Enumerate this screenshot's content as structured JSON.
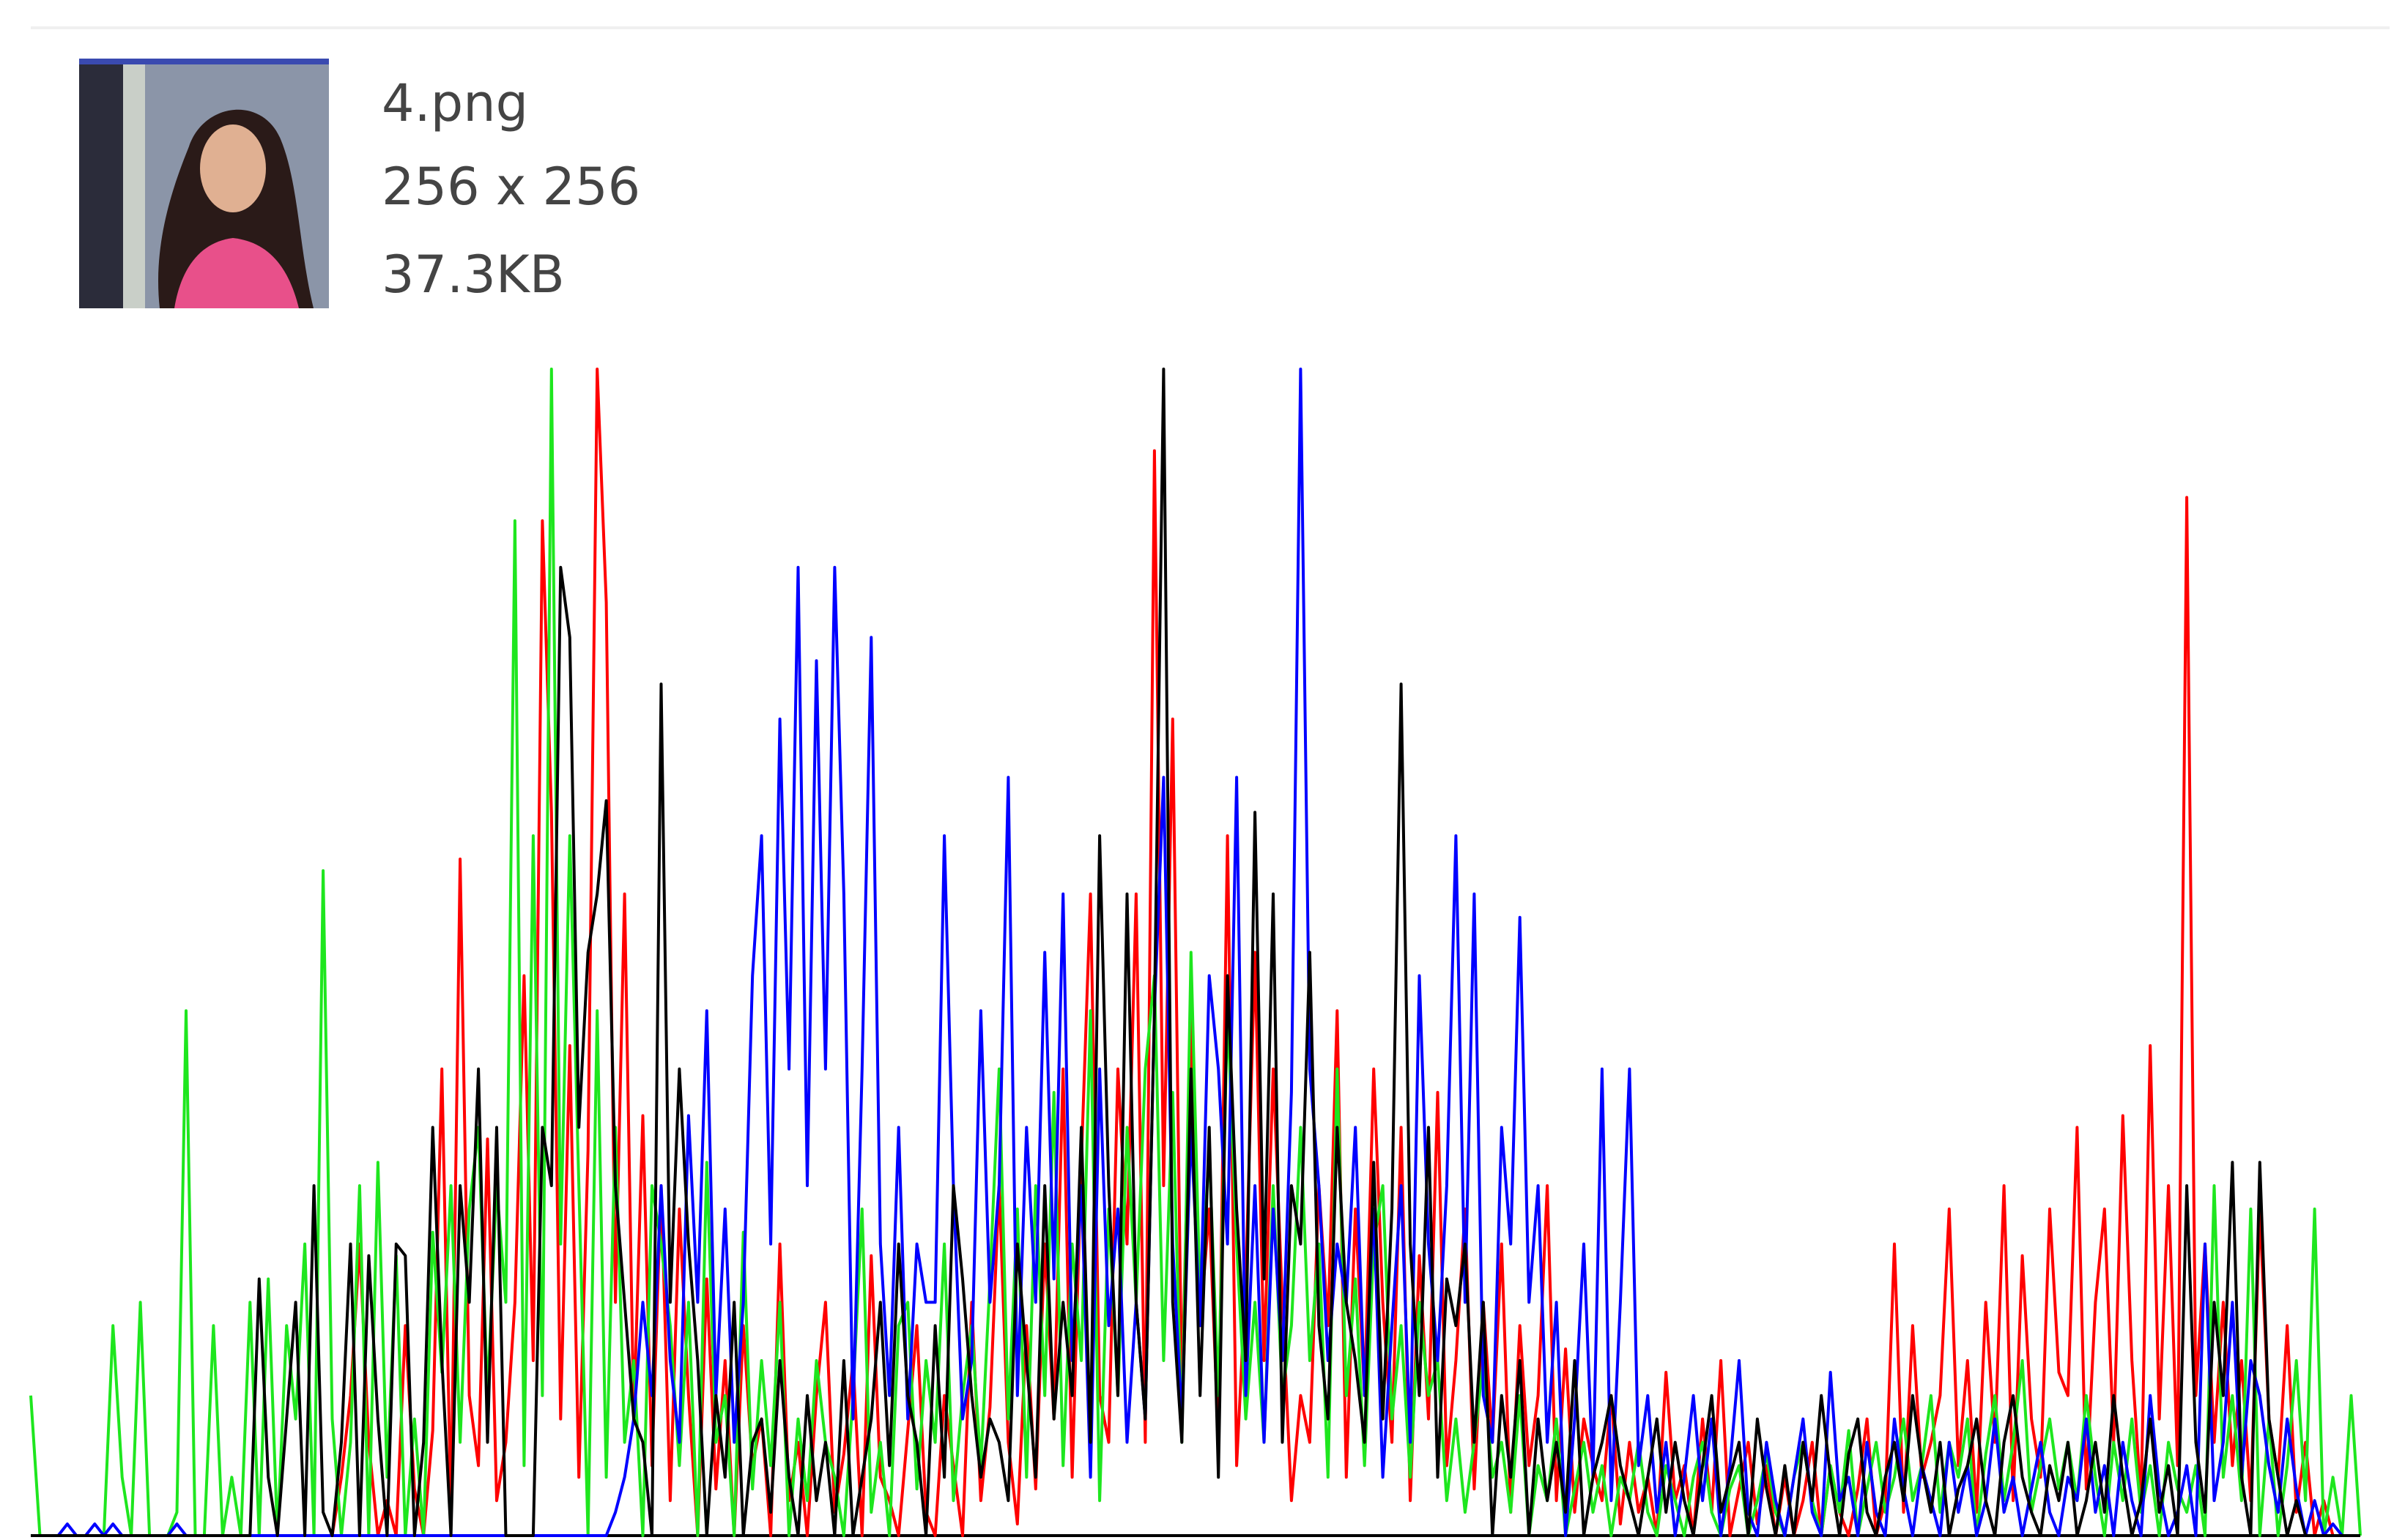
{
  "file": {
    "name": "4.png",
    "dimensions": "256 x 256",
    "size": "37.3KB"
  },
  "chart_data": {
    "type": "line",
    "ylim": [
      0,
      100
    ],
    "series": [
      {
        "color": "#ff0000",
        "values": [
          0,
          0,
          0,
          0,
          0,
          0,
          0,
          0,
          0,
          0,
          0,
          0,
          0,
          0,
          0,
          0,
          0,
          0,
          0,
          0,
          0,
          0,
          0,
          0,
          0,
          0,
          0,
          0,
          0,
          0,
          0,
          0,
          0,
          0,
          5,
          12,
          25,
          8,
          0,
          3,
          0,
          18,
          4,
          0,
          9,
          40,
          2,
          58,
          12,
          6,
          34,
          3,
          8,
          20,
          48,
          15,
          87,
          62,
          10,
          42,
          5,
          33,
          100,
          80,
          20,
          55,
          10,
          36,
          6,
          30,
          3,
          28,
          12,
          0,
          22,
          4,
          15,
          0,
          18,
          6,
          10,
          0,
          25,
          3,
          8,
          0,
          12,
          20,
          2,
          7,
          15,
          0,
          24,
          5,
          3,
          0,
          9,
          18,
          2,
          0,
          12,
          6,
          0,
          20,
          3,
          11,
          30,
          8,
          1,
          18,
          4,
          25,
          10,
          40,
          5,
          32,
          55,
          12,
          8,
          40,
          25,
          55,
          8,
          93,
          30,
          70,
          12,
          45,
          18,
          28,
          8,
          60,
          6,
          22,
          50,
          15,
          40,
          20,
          3,
          12,
          8,
          30,
          18,
          45,
          5,
          28,
          12,
          40,
          20,
          8,
          35,
          3,
          24,
          10,
          38,
          6,
          15,
          28,
          4,
          20,
          8,
          25,
          2,
          18,
          6,
          12,
          30,
          3,
          16,
          2,
          10,
          6,
          3,
          12,
          1,
          8,
          2,
          5,
          0,
          14,
          3,
          6,
          0,
          10,
          2,
          15,
          0,
          4,
          8,
          1,
          6,
          0,
          5,
          0,
          3,
          8,
          0,
          6,
          2,
          0,
          4,
          10,
          0,
          3,
          25,
          2,
          18,
          5,
          8,
          12,
          28,
          6,
          15,
          2,
          20,
          8,
          30,
          3,
          24,
          10,
          5,
          28,
          14,
          12,
          35,
          4,
          20,
          28,
          8,
          36,
          15,
          3,
          42,
          10,
          30,
          6,
          89,
          12,
          25,
          8,
          20,
          6,
          15,
          3,
          28,
          10,
          5,
          18,
          2,
          8,
          0,
          3,
          0,
          0,
          0,
          0
        ]
      },
      {
        "color": "#1ee61e",
        "values": [
          12,
          0,
          0,
          0,
          0,
          0,
          0,
          0,
          0,
          18,
          5,
          0,
          20,
          0,
          0,
          0,
          2,
          45,
          0,
          0,
          18,
          0,
          5,
          0,
          20,
          0,
          22,
          0,
          18,
          10,
          25,
          0,
          57,
          10,
          0,
          8,
          30,
          0,
          32,
          5,
          24,
          0,
          10,
          0,
          26,
          14,
          30,
          8,
          28,
          35,
          12,
          30,
          20,
          87,
          6,
          60,
          12,
          100,
          25,
          60,
          30,
          0,
          45,
          5,
          35,
          8,
          15,
          0,
          30,
          25,
          18,
          6,
          20,
          0,
          32,
          8,
          12,
          0,
          26,
          4,
          15,
          6,
          20,
          0,
          10,
          3,
          15,
          8,
          5,
          0,
          12,
          28,
          2,
          8,
          0,
          18,
          20,
          4,
          15,
          8,
          25,
          3,
          12,
          18,
          6,
          22,
          40,
          10,
          28,
          5,
          30,
          12,
          38,
          6,
          25,
          15,
          45,
          3,
          28,
          12,
          35,
          20,
          40,
          48,
          15,
          38,
          8,
          50,
          20,
          33,
          12,
          45,
          25,
          10,
          20,
          8,
          30,
          12,
          18,
          35,
          15,
          25,
          5,
          40,
          12,
          22,
          6,
          25,
          30,
          10,
          18,
          5,
          20,
          12,
          15,
          3,
          10,
          2,
          8,
          15,
          5,
          8,
          2,
          12,
          0,
          6,
          3,
          10,
          0,
          4,
          8,
          2,
          6,
          0,
          5,
          3,
          8,
          2,
          0,
          6,
          3,
          0,
          5,
          8,
          2,
          0,
          4,
          6,
          0,
          3,
          7,
          2,
          0,
          5,
          8,
          3,
          0,
          6,
          2,
          9,
          0,
          4,
          8,
          2,
          5,
          10,
          3,
          6,
          12,
          2,
          8,
          5,
          10,
          0,
          7,
          12,
          3,
          8,
          15,
          2,
          6,
          10,
          4,
          8,
          3,
          12,
          5,
          0,
          8,
          3,
          10,
          2,
          6,
          0,
          8,
          4,
          2,
          6,
          0,
          30,
          5,
          12,
          3,
          28,
          0,
          10,
          0,
          6,
          15,
          3,
          28,
          0,
          5,
          0,
          12,
          0
        ]
      },
      {
        "color": "#0000ff",
        "values": [
          0,
          0,
          0,
          0,
          1,
          0,
          0,
          1,
          0,
          1,
          0,
          0,
          0,
          0,
          0,
          0,
          1,
          0,
          0,
          0,
          0,
          0,
          0,
          0,
          0,
          0,
          0,
          0,
          0,
          0,
          0,
          0,
          0,
          0,
          0,
          0,
          0,
          0,
          0,
          0,
          0,
          0,
          0,
          0,
          0,
          0,
          0,
          0,
          0,
          0,
          0,
          0,
          0,
          0,
          0,
          0,
          0,
          0,
          0,
          0,
          0,
          0,
          0,
          0,
          2,
          5,
          10,
          20,
          12,
          30,
          15,
          8,
          36,
          20,
          45,
          12,
          28,
          8,
          20,
          48,
          60,
          25,
          70,
          40,
          83,
          30,
          75,
          40,
          83,
          55,
          10,
          40,
          77,
          25,
          12,
          35,
          10,
          25,
          20,
          20,
          60,
          30,
          10,
          15,
          45,
          20,
          30,
          65,
          12,
          35,
          20,
          50,
          22,
          55,
          15,
          30,
          5,
          40,
          18,
          28,
          8,
          20,
          10,
          45,
          65,
          25,
          10,
          35,
          18,
          48,
          40,
          25,
          65,
          12,
          30,
          8,
          28,
          15,
          38,
          100,
          40,
          30,
          15,
          25,
          20,
          35,
          12,
          28,
          5,
          18,
          30,
          8,
          48,
          25,
          15,
          30,
          60,
          20,
          55,
          12,
          8,
          35,
          25,
          53,
          20,
          30,
          8,
          20,
          0,
          10,
          25,
          5,
          40,
          3,
          20,
          40,
          6,
          12,
          2,
          8,
          0,
          5,
          12,
          3,
          10,
          0,
          6,
          15,
          2,
          0,
          8,
          3,
          0,
          5,
          10,
          2,
          0,
          14,
          3,
          5,
          0,
          8,
          2,
          0,
          10,
          4,
          0,
          6,
          3,
          0,
          8,
          2,
          6,
          0,
          3,
          10,
          2,
          5,
          0,
          4,
          8,
          2,
          0,
          5,
          3,
          10,
          2,
          6,
          0,
          8,
          3,
          0,
          12,
          4,
          0,
          2,
          6,
          0,
          25,
          3,
          8,
          20,
          5,
          15,
          12,
          6,
          2,
          10,
          4,
          0,
          3,
          0,
          1,
          0,
          0,
          0
        ]
      },
      {
        "color": "#000000",
        "values": [
          0,
          0,
          0,
          0,
          0,
          0,
          0,
          0,
          0,
          0,
          0,
          0,
          0,
          0,
          0,
          0,
          0,
          0,
          0,
          0,
          0,
          0,
          0,
          0,
          0,
          22,
          5,
          0,
          10,
          20,
          0,
          30,
          2,
          0,
          8,
          25,
          0,
          24,
          10,
          0,
          25,
          24,
          0,
          8,
          35,
          15,
          0,
          30,
          20,
          40,
          8,
          35,
          0,
          0,
          0,
          0,
          35,
          30,
          83,
          77,
          35,
          50,
          55,
          63,
          30,
          20,
          10,
          8,
          0,
          73,
          20,
          40,
          25,
          15,
          0,
          12,
          5,
          20,
          0,
          8,
          10,
          2,
          15,
          5,
          0,
          12,
          3,
          8,
          0,
          15,
          0,
          5,
          10,
          20,
          6,
          25,
          12,
          8,
          0,
          18,
          5,
          30,
          22,
          12,
          5,
          10,
          8,
          3,
          25,
          15,
          5,
          30,
          10,
          20,
          12,
          35,
          8,
          60,
          30,
          12,
          55,
          20,
          10,
          45,
          100,
          20,
          8,
          40,
          12,
          35,
          5,
          48,
          28,
          15,
          62,
          22,
          55,
          8,
          30,
          25,
          50,
          18,
          10,
          35,
          20,
          15,
          8,
          32,
          10,
          28,
          73,
          25,
          12,
          35,
          5,
          22,
          18,
          25,
          8,
          20,
          0,
          12,
          5,
          15,
          0,
          10,
          3,
          8,
          2,
          15,
          0,
          5,
          8,
          12,
          6,
          3,
          0,
          5,
          10,
          2,
          8,
          3,
          0,
          6,
          12,
          2,
          5,
          8,
          0,
          10,
          4,
          0,
          6,
          0,
          8,
          3,
          12,
          5,
          0,
          7,
          10,
          2,
          0,
          5,
          8,
          3,
          12,
          6,
          2,
          8,
          0,
          4,
          6,
          10,
          3,
          0,
          8,
          12,
          5,
          2,
          0,
          6,
          3,
          8,
          0,
          3,
          8,
          2,
          12,
          5,
          0,
          3,
          10,
          2,
          6,
          0,
          30,
          8,
          2,
          20,
          12,
          32,
          5,
          0,
          32,
          10,
          5,
          0,
          3,
          0,
          0,
          0,
          0,
          0,
          0,
          0
        ]
      }
    ]
  }
}
